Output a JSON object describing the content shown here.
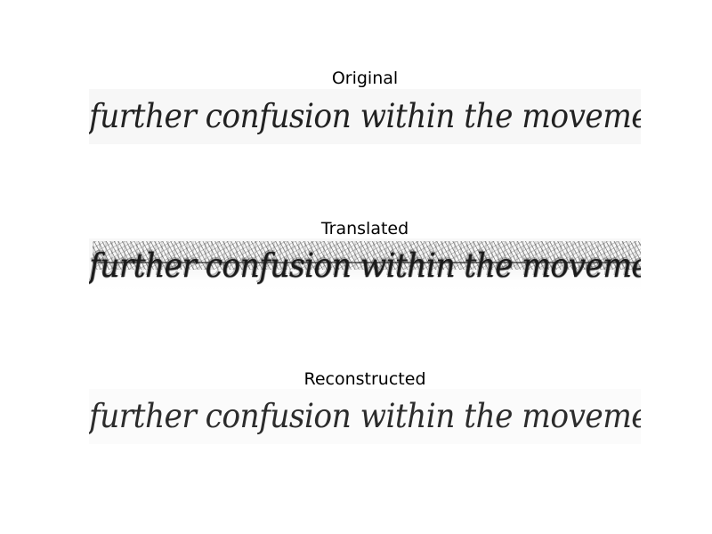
{
  "panels": [
    {
      "title": "Original",
      "handwriting": "further confusion within the movement. Unity"
    },
    {
      "title": "Translated",
      "handwriting": "further confusion within the movement. Unity"
    },
    {
      "title": "Reconstructed",
      "handwriting": "further confusion within the movement. Unity"
    }
  ]
}
